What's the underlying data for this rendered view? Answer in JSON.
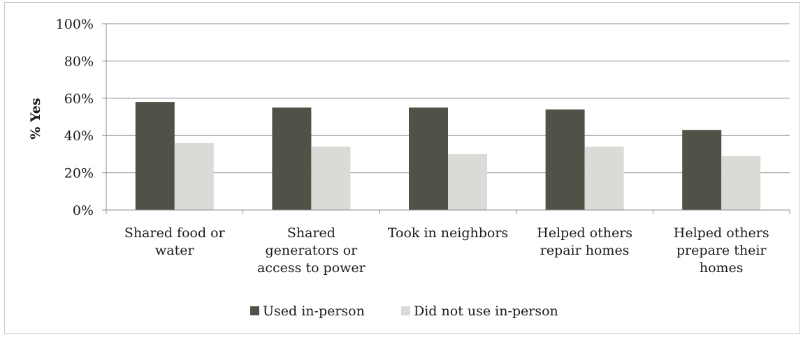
{
  "chart_data": {
    "type": "bar",
    "ylabel": "% Yes",
    "ylim": [
      0,
      100
    ],
    "yticks": [
      "0%",
      "20%",
      "40%",
      "60%",
      "80%",
      "100%"
    ],
    "grid": true,
    "legend_position": "bottom",
    "categories": [
      [
        "Shared food or",
        "water"
      ],
      [
        "Shared",
        "generators or",
        "access to power"
      ],
      [
        "Took in neighbors"
      ],
      [
        "Helped others",
        "repair homes"
      ],
      [
        "Helped others",
        "prepare their",
        "homes"
      ]
    ],
    "series": [
      {
        "name": "Used in-person",
        "color": "#515148",
        "values": [
          58,
          55,
          55,
          54,
          43
        ]
      },
      {
        "name": "Did not use in-person",
        "color": "#dcdad6",
        "values": [
          36,
          34,
          30,
          34,
          29
        ]
      }
    ]
  }
}
